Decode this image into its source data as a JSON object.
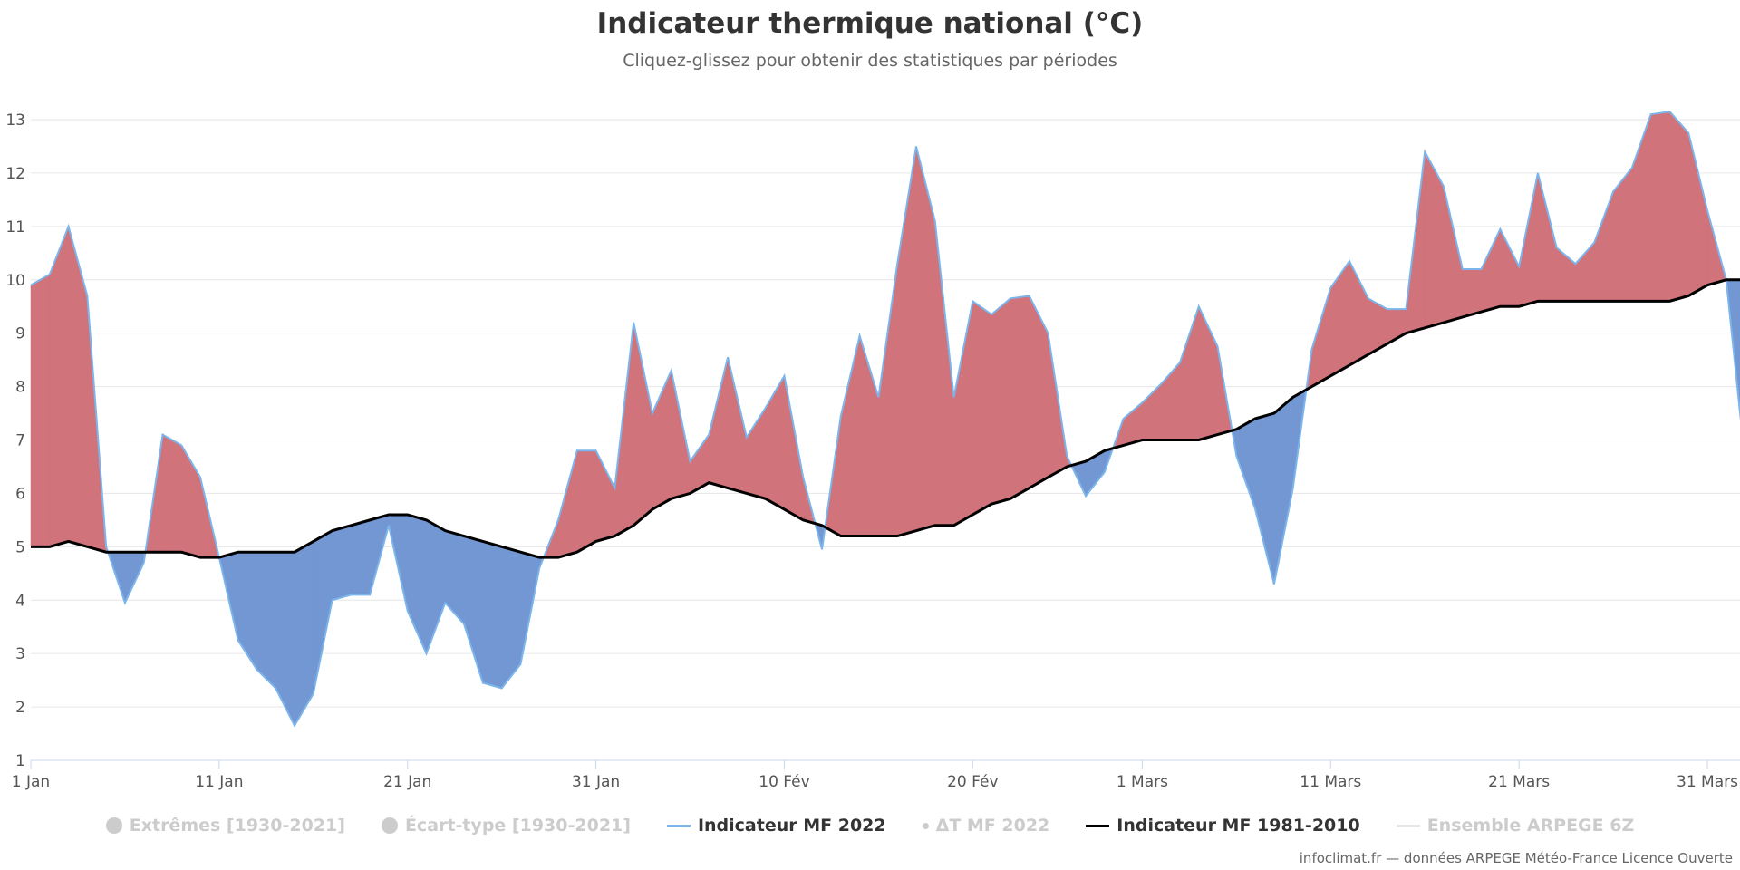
{
  "chart_data": {
    "type": "area",
    "title": "Indicateur thermique national (°C)",
    "subtitle": "Cliquez-glissez pour obtenir des statistiques par périodes",
    "xlabel": "",
    "ylabel": "",
    "ylim": [
      1,
      13.5
    ],
    "yticks": [
      1,
      2,
      3,
      4,
      5,
      6,
      7,
      8,
      9,
      10,
      11,
      12,
      13
    ],
    "xticks": [
      {
        "day": 0,
        "label": "1 Jan"
      },
      {
        "day": 10,
        "label": "11 Jan"
      },
      {
        "day": 20,
        "label": "21 Jan"
      },
      {
        "day": 30,
        "label": "31 Jan"
      },
      {
        "day": 40,
        "label": "10 Fév"
      },
      {
        "day": 50,
        "label": "20 Fév"
      },
      {
        "day": 59,
        "label": "1 Mars"
      },
      {
        "day": 69,
        "label": "11 Mars"
      },
      {
        "day": 79,
        "label": "21 Mars"
      },
      {
        "day": 89,
        "label": "31 Mars"
      }
    ],
    "grid": true,
    "colors": {
      "above_normal": "#d0737a",
      "below_normal": "#7297d2",
      "series_2022": "#7cb5ec",
      "normal": "#000000",
      "grid": "#e6e6e6"
    },
    "series": [
      {
        "name": "Indicateur MF 2022",
        "values": [
          9.9,
          10.1,
          11.0,
          9.7,
          5.0,
          3.95,
          4.7,
          7.1,
          6.9,
          6.3,
          4.8,
          3.25,
          2.7,
          2.35,
          1.65,
          2.25,
          4.0,
          4.1,
          4.1,
          5.4,
          3.8,
          3.0,
          3.95,
          3.55,
          2.45,
          2.35,
          2.8,
          4.6,
          5.5,
          6.8,
          6.8,
          6.1,
          9.2,
          7.5,
          8.3,
          6.6,
          7.1,
          8.55,
          7.05,
          7.6,
          8.2,
          6.3,
          4.95,
          7.45,
          8.95,
          7.8,
          10.3,
          12.5,
          11.1,
          7.8,
          9.6,
          9.35,
          9.65,
          9.7,
          9.0,
          6.7,
          5.95,
          6.4,
          7.4,
          7.7,
          8.05,
          8.45,
          9.5,
          8.75,
          6.7,
          5.7,
          4.3,
          6.1,
          8.7,
          9.85,
          10.35,
          9.65,
          9.45,
          9.45,
          12.4,
          11.75,
          10.2,
          10.2,
          10.95,
          10.25,
          12.0,
          10.6,
          10.3,
          10.7,
          11.65,
          12.1,
          13.1,
          13.15,
          12.75,
          11.3,
          10.0,
          6.6
        ]
      },
      {
        "name": "Indicateur MF 1981-2010",
        "values": [
          5.0,
          5.0,
          5.1,
          5.0,
          4.9,
          4.9,
          4.9,
          4.9,
          4.9,
          4.8,
          4.8,
          4.9,
          4.9,
          4.9,
          4.9,
          5.1,
          5.3,
          5.4,
          5.5,
          5.6,
          5.6,
          5.5,
          5.3,
          5.2,
          5.1,
          5.0,
          4.9,
          4.8,
          4.8,
          4.9,
          5.1,
          5.2,
          5.4,
          5.7,
          5.9,
          6.0,
          6.2,
          6.1,
          6.0,
          5.9,
          5.7,
          5.5,
          5.4,
          5.2,
          5.2,
          5.2,
          5.2,
          5.3,
          5.4,
          5.4,
          5.6,
          5.8,
          5.9,
          6.1,
          6.3,
          6.5,
          6.6,
          6.8,
          6.9,
          7.0,
          7.0,
          7.0,
          7.0,
          7.1,
          7.2,
          7.4,
          7.5,
          7.8,
          8.0,
          8.2,
          8.4,
          8.6,
          8.8,
          9.0,
          9.1,
          9.2,
          9.3,
          9.4,
          9.5,
          9.5,
          9.6,
          9.6,
          9.6,
          9.6,
          9.6,
          9.6,
          9.6,
          9.6,
          9.7,
          9.9,
          10.0,
          10.0
        ]
      }
    ],
    "legend": [
      {
        "label": "Extrêmes [1930-2021]",
        "symbol": "dot",
        "active": false
      },
      {
        "label": "Écart-type [1930-2021]",
        "symbol": "dot",
        "active": false
      },
      {
        "label": "Indicateur MF 2022",
        "symbol": "line",
        "color": "#7cb5ec",
        "active": true
      },
      {
        "label": "ΔT MF 2022",
        "symbol": "small-dot",
        "active": false
      },
      {
        "label": "Indicateur MF 1981-2010",
        "symbol": "line",
        "color": "#000000",
        "active": true
      },
      {
        "label": "Ensemble ARPEGE 6Z",
        "symbol": "line",
        "color": "#e6e6e6",
        "active": false
      }
    ],
    "legend_position": "bottom-center"
  },
  "credit": "infoclimat.fr — données ARPEGE Météo-France Licence Ouverte"
}
